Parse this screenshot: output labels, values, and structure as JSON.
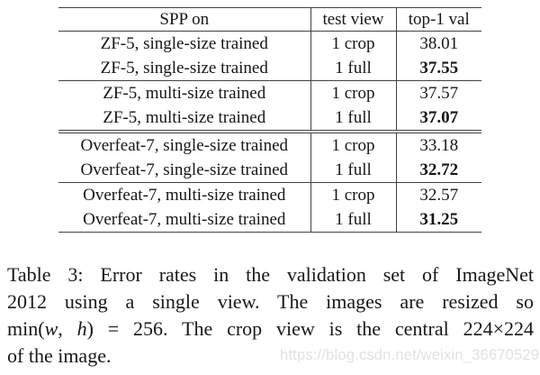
{
  "table": {
    "headers": {
      "col1": "SPP on",
      "col2": "test view",
      "col3": "top-1 val"
    },
    "rows": [
      {
        "model": "ZF-5, single-size trained",
        "view": "1 crop",
        "top1": "38.01",
        "bold": false
      },
      {
        "model": "ZF-5, single-size trained",
        "view": "1 full",
        "top1": "37.55",
        "bold": true
      },
      {
        "model": "ZF-5, multi-size trained",
        "view": "1 crop",
        "top1": "37.57",
        "bold": false
      },
      {
        "model": "ZF-5, multi-size trained",
        "view": "1 full",
        "top1": "37.07",
        "bold": true
      },
      {
        "model": "Overfeat-7, single-size trained",
        "view": "1 crop",
        "top1": "33.18",
        "bold": false
      },
      {
        "model": "Overfeat-7, single-size trained",
        "view": "1 full",
        "top1": "32.72",
        "bold": true
      },
      {
        "model": "Overfeat-7, multi-size trained",
        "view": "1 crop",
        "top1": "32.57",
        "bold": false
      },
      {
        "model": "Overfeat-7, multi-size trained",
        "view": "1 full",
        "top1": "31.25",
        "bold": true
      }
    ]
  },
  "caption": {
    "line1": "Table 3: Error rates in the validation set of ImageNet",
    "line2": "2012 using a single view. The images are resized so",
    "line3": {
      "pre": "min(",
      "var1": "w",
      "sep": ", ",
      "var2": "h",
      "post": ") = 256. The crop view is the central 224×224"
    },
    "line4": "of the image."
  },
  "watermark": {
    "text": "https://blog.csdn.net/weixin_36670529",
    "color": "#e1e1e4"
  },
  "colors": {
    "text": "#1a1a1a",
    "rule": "#424242",
    "background": "#ffffff"
  }
}
